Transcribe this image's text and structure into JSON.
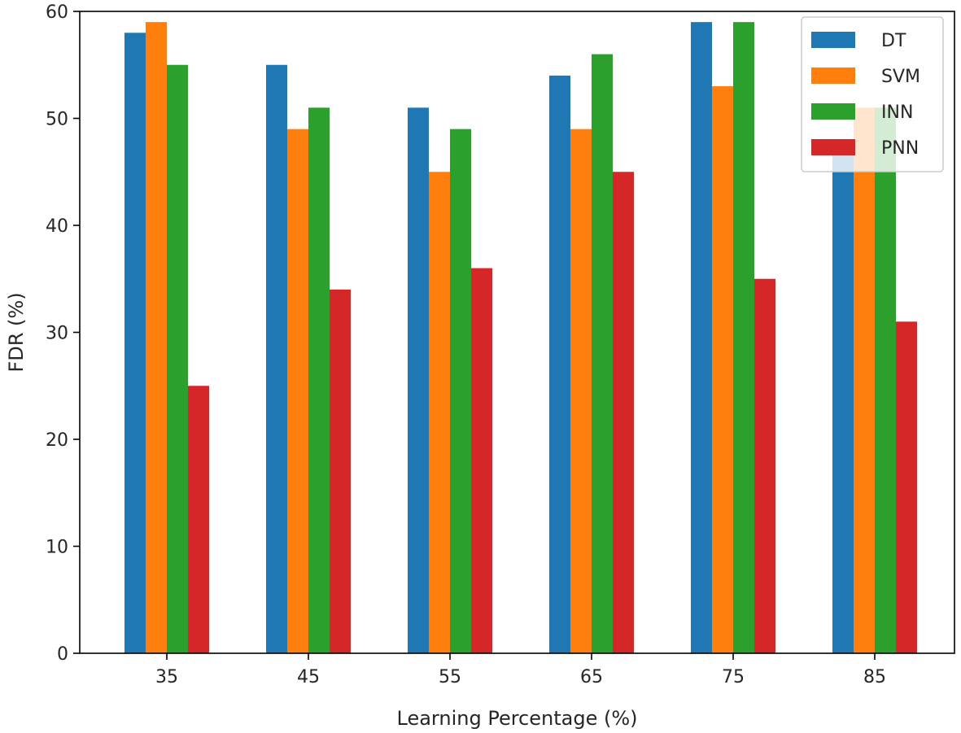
{
  "chart_data": {
    "type": "bar",
    "title": "",
    "xlabel": "Learning Percentage (%)",
    "ylabel": "FDR (%)",
    "categories": [
      "35",
      "45",
      "55",
      "65",
      "75",
      "85"
    ],
    "series": [
      {
        "name": "DT",
        "color": "#1f77b4",
        "values": [
          58,
          55,
          51,
          54,
          59,
          47
        ]
      },
      {
        "name": "SVM",
        "color": "#ff7f0e",
        "values": [
          59,
          49,
          45,
          49,
          53,
          51
        ]
      },
      {
        "name": "INN",
        "color": "#2ca02c",
        "values": [
          55,
          51,
          49,
          56,
          59,
          51
        ]
      },
      {
        "name": "PNN",
        "color": "#d62728",
        "values": [
          25,
          34,
          36,
          45,
          35,
          31
        ]
      }
    ],
    "ylim": [
      0,
      60
    ],
    "yticks": [
      0,
      10,
      20,
      30,
      40,
      50,
      60
    ],
    "grid": false,
    "legend_position": "top-right"
  }
}
